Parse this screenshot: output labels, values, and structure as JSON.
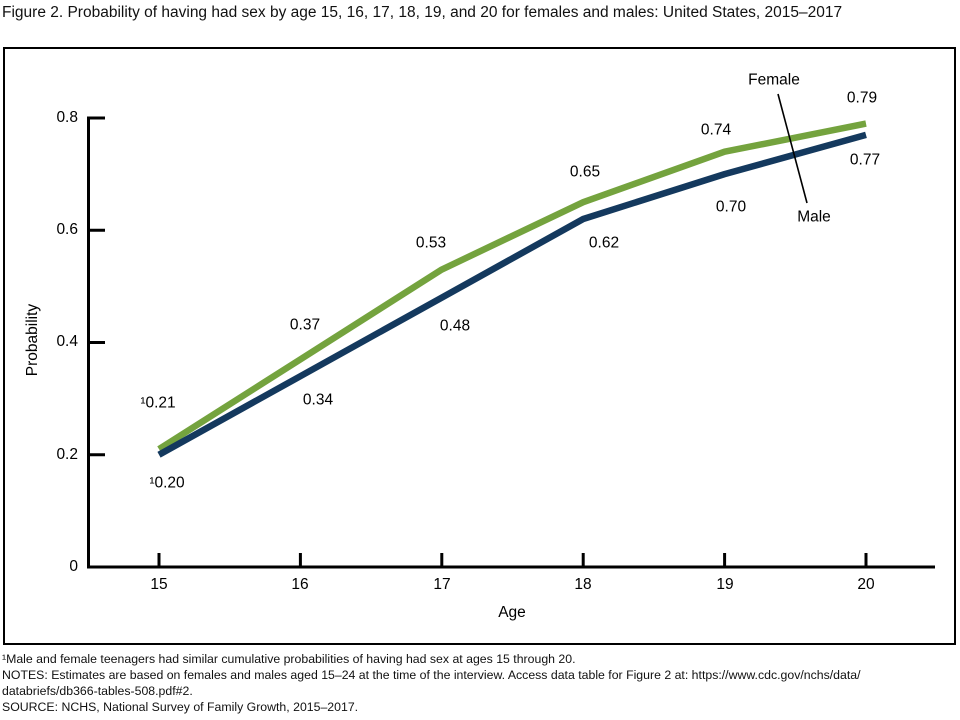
{
  "figure": {
    "title": "Figure 2. Probability of having had sex by age 15, 16, 17, 18, 19, and 20 for females and males: United States, 2015–2017",
    "footnotes": [
      "¹Male and female teenagers had similar cumulative probabilities of having had sex at ages 15 through 20.",
      "NOTES: Estimates are based on females and males aged 15–24 at the time of the interview. Access data table for Figure 2 at: https://www.cdc.gov/nchs/data/",
      "databriefs/db366-tables-508.pdf#2.",
      "SOURCE: NCHS, National Survey of Family Growth, 2015–2017."
    ]
  },
  "chart_data": {
    "type": "line",
    "title": "Figure 2. Probability of having had sex by age 15, 16, 17, 18, 19, and 20 for females and males: United States, 2015–2017",
    "xlabel": "Age",
    "ylabel": "Probability",
    "x": [
      15,
      16,
      17,
      18,
      19,
      20
    ],
    "xlim": [
      15,
      20
    ],
    "ylim": [
      0,
      0.8
    ],
    "grid": false,
    "legend_position": "inline-callout",
    "x_tick_labels": [
      "15",
      "16",
      "17",
      "18",
      "19",
      "20"
    ],
    "y_tick_labels": [
      "0.8",
      "0.6",
      "0.4",
      "0.2",
      "0"
    ],
    "series": [
      {
        "name": "Female",
        "color": "#74a33e",
        "values": [
          0.21,
          0.37,
          0.53,
          0.65,
          0.74,
          0.79
        ],
        "point_labels": [
          "¹0.21",
          "0.37",
          "0.53",
          "0.65",
          "0.74",
          "0.79"
        ]
      },
      {
        "name": "Male",
        "color": "#14395e",
        "values": [
          0.2,
          0.34,
          0.48,
          0.62,
          0.7,
          0.77
        ],
        "point_labels": [
          "¹0.20",
          "0.34",
          "0.48",
          "0.62",
          "0.70",
          "0.77"
        ]
      }
    ]
  }
}
